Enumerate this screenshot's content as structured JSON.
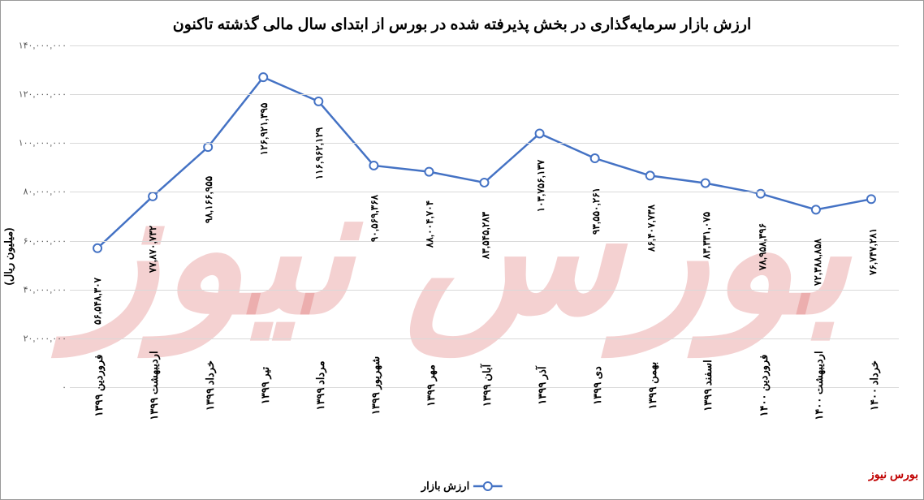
{
  "chart": {
    "type": "line",
    "title": "ارزش بازار سرمایه‌گذاری در بخش پذیرفته شده در بورس از ابتدای سال مالی گذشته تاکنون",
    "title_fontsize": 19,
    "ylabel": "(میلیون ریال)",
    "ylim": [
      0,
      140000000
    ],
    "ytick_step": 20000000,
    "yticks": [
      {
        "v": 0,
        "label": "۰"
      },
      {
        "v": 20000000,
        "label": "۲۰,۰۰۰,۰۰۰"
      },
      {
        "v": 40000000,
        "label": "۴۰,۰۰۰,۰۰۰"
      },
      {
        "v": 60000000,
        "label": "۶۰,۰۰۰,۰۰۰"
      },
      {
        "v": 80000000,
        "label": "۸۰,۰۰۰,۰۰۰"
      },
      {
        "v": 100000000,
        "label": "۱۰۰,۰۰۰,۰۰۰"
      },
      {
        "v": 120000000,
        "label": "۱۲۰,۰۰۰,۰۰۰"
      },
      {
        "v": 140000000,
        "label": "۱۴۰,۰۰۰,۰۰۰"
      }
    ],
    "categories": [
      "فروردین ۱۳۹۹",
      "اردیبهشت ۱۳۹۹",
      "خرداد ۱۳۹۹",
      "تیر ۱۳۹۹",
      "مرداد ۱۳۹۹",
      "شهریور ۱۳۹۹",
      "مهر ۱۳۹۹",
      "آبان ۱۳۹۹",
      "آذر ۱۳۹۹",
      "دی ۱۳۹۹",
      "بهمن ۱۳۹۹",
      "اسفند ۱۳۹۹",
      "فروردین ۱۴۰۰",
      "اردیبهشت ۱۴۰۰",
      "خرداد ۱۴۰۰"
    ],
    "values": [
      56548307,
      77870732,
      98166955,
      126921395,
      116962129,
      90569368,
      88004704,
      83545283,
      103756137,
      93550261,
      86407738,
      83331075,
      78958396,
      72388858,
      76747281
    ],
    "value_labels": [
      "۵۶,۵۴۸,۳۰۷",
      "۷۷,۸۷۰,۷۳۲",
      "۹۸,۱۶۶,۹۵۵",
      "۱۲۶,۹۲۱,۳۹۵",
      "۱۱۶,۹۶۲,۱۲۹",
      "۹۰,۵۶۹,۳۶۸",
      "۸۸,۰۰۴,۷۰۴",
      "۸۳,۵۴۵,۲۸۳",
      "۱۰۳,۷۵۶,۱۳۷",
      "۹۳,۵۵۰,۲۶۱",
      "۸۶,۴۰۷,۷۳۸",
      "۸۳,۳۳۱,۰۷۵",
      "۷۸,۹۵۸,۳۹۶",
      "۷۲,۳۸۸,۸۵۸",
      "۷۶,۷۴۷,۲۸۱"
    ],
    "line_color": "#4472c4",
    "marker_fill": "#ffffff",
    "marker_stroke": "#4472c4",
    "marker_radius": 5,
    "line_width": 2.5,
    "grid_color": "#d9d9d9",
    "background_color": "#ffffff",
    "legend_label": "ارزش بازار",
    "watermark_text": "بورس نیوز",
    "watermark_color": "#c00000",
    "bg_watermark_text": "بورس نیوز"
  }
}
